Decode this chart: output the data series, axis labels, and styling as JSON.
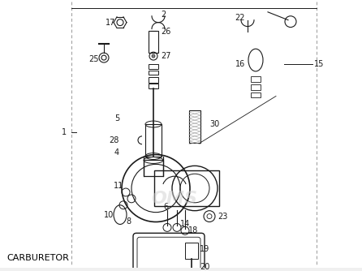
{
  "title": "CARBURETOR",
  "bg_color": "#f5f5f5",
  "line_color": "#1a1a1a",
  "dashed_color": "#999999",
  "text_color": "#000000",
  "fig_width": 4.46,
  "fig_height": 3.34,
  "dpi": 100,
  "label_fs": 7,
  "title_fs": 8
}
